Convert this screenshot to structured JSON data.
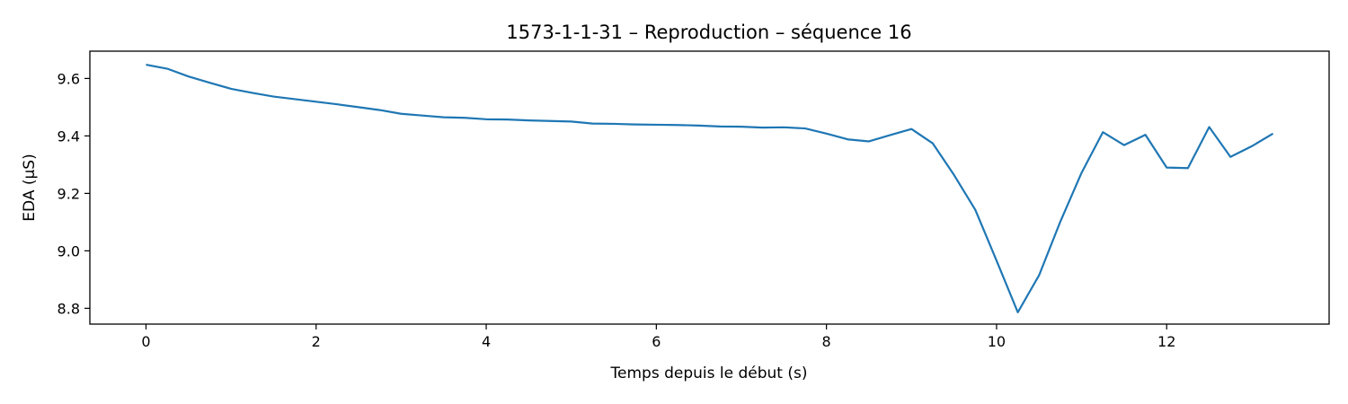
{
  "chart_data": {
    "type": "line",
    "title": "1573-1-1-31 – Reproduction – séquence 16",
    "xlabel": "Temps depuis le début (s)",
    "ylabel": "EDA (µS)",
    "xlim": [
      -0.66,
      13.91
    ],
    "ylim": [
      8.745,
      9.695
    ],
    "xticks": [
      0,
      2,
      4,
      6,
      8,
      10,
      12
    ],
    "xtick_labels": [
      "0",
      "2",
      "4",
      "6",
      "8",
      "10",
      "12"
    ],
    "yticks": [
      8.8,
      9.0,
      9.2,
      9.4,
      9.6
    ],
    "ytick_labels": [
      "8.8",
      "9.0",
      "9.2",
      "9.4",
      "9.6"
    ],
    "grid": false,
    "legend": false,
    "line_color": "#1f77b4",
    "series": [
      {
        "x": [
          0,
          0.25,
          0.5,
          0.75,
          1.0,
          1.25,
          1.5,
          1.75,
          2.0,
          2.25,
          2.5,
          2.75,
          3.0,
          3.25,
          3.5,
          3.75,
          4.0,
          4.25,
          4.5,
          4.75,
          5.0,
          5.25,
          5.5,
          5.75,
          6.0,
          6.25,
          6.5,
          6.75,
          7.0,
          7.25,
          7.5,
          7.75,
          8.0,
          8.25,
          8.5,
          8.75,
          9.0,
          9.25,
          9.5,
          9.75,
          10.0,
          10.25,
          10.5,
          10.75,
          11.0,
          11.25,
          11.5,
          11.75,
          12.0,
          12.25,
          12.5,
          12.75,
          13.0,
          13.25
        ],
        "values": [
          9.648,
          9.634,
          9.607,
          9.585,
          9.564,
          9.55,
          9.537,
          9.528,
          9.519,
          9.51,
          9.5,
          9.49,
          9.477,
          9.471,
          9.465,
          9.463,
          9.458,
          9.457,
          9.454,
          9.452,
          9.45,
          9.443,
          9.442,
          9.44,
          9.439,
          9.438,
          9.436,
          9.433,
          9.432,
          9.429,
          9.43,
          9.426,
          9.408,
          9.388,
          9.381,
          9.403,
          9.424,
          9.374,
          9.264,
          9.143,
          8.966,
          8.786,
          8.915,
          9.102,
          9.272,
          9.413,
          9.368,
          9.404,
          9.29,
          9.288,
          9.431,
          9.327,
          9.364,
          9.408
        ]
      }
    ]
  }
}
